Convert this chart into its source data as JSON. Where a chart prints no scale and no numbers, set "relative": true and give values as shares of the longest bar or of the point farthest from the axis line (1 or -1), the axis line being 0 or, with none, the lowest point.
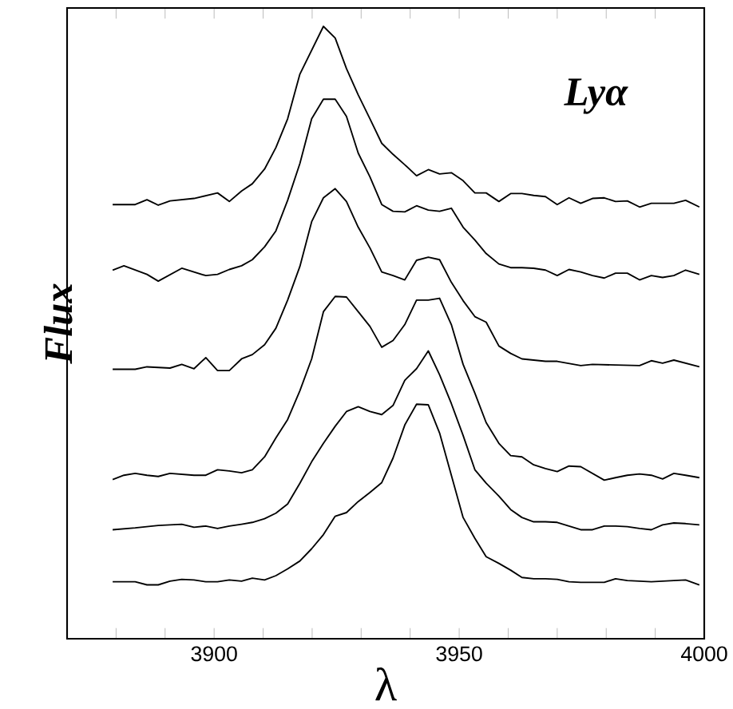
{
  "chart_data": {
    "type": "line",
    "xlabel": "λ",
    "ylabel": "Flux",
    "annotations": [
      "Lyα"
    ],
    "relative": true,
    "line_style": "solid",
    "grid": false,
    "xlim": [
      3870,
      4000
    ],
    "xticks": [
      {
        "value": 3880,
        "label": null
      },
      {
        "value": 3890,
        "label": null
      },
      3900,
      {
        "value": 3910,
        "label": null
      },
      {
        "value": 3920,
        "label": null
      },
      {
        "value": 3930,
        "label": null
      },
      {
        "value": 3940,
        "label": null
      },
      3950,
      {
        "value": 3960,
        "label": null
      },
      {
        "value": 3970,
        "label": null
      },
      {
        "value": 3980,
        "label": null
      },
      {
        "value": 3990,
        "label": null
      },
      4000
    ],
    "series": [
      {
        "color": "#000000",
        "x": [
          3879.3,
          3883.9,
          3886.3,
          3888.6,
          3891.0,
          3895.9,
          3900.7,
          3903.1,
          3905.6,
          3907.8,
          3910.3,
          3912.6,
          3915.0,
          3917.5,
          3919.9,
          3922.3,
          3924.7,
          3927.0,
          3929.4,
          3931.8,
          3934.2,
          3936.5,
          3938.9,
          3941.3,
          3943.7,
          3946.0,
          3948.4,
          3950.8,
          3953.2,
          3955.5,
          3958.1,
          3960.5,
          3962.8,
          3965.2,
          3967.6,
          3970.0,
          3972.4,
          3974.8,
          3977.2,
          3979.6,
          3981.9,
          3984.3,
          3986.8,
          3989.2,
          3993.8,
          3996.2,
          3999.0
        ],
        "values": [
          0.709,
          0.709,
          0.717,
          0.708,
          0.715,
          0.719,
          0.728,
          0.714,
          0.731,
          0.743,
          0.767,
          0.802,
          0.849,
          0.922,
          0.961,
          1.0,
          0.981,
          0.931,
          0.888,
          0.849,
          0.809,
          0.791,
          0.774,
          0.756,
          0.766,
          0.759,
          0.761,
          0.748,
          0.728,
          0.728,
          0.714,
          0.727,
          0.727,
          0.724,
          0.722,
          0.709,
          0.72,
          0.711,
          0.719,
          0.72,
          0.714,
          0.715,
          0.705,
          0.711,
          0.711,
          0.716,
          0.705
        ]
      },
      {
        "color": "#000000",
        "x": [
          3879.3,
          3881.6,
          3886.3,
          3888.6,
          3893.4,
          3898.3,
          3900.7,
          3903.1,
          3905.6,
          3907.8,
          3910.3,
          3912.6,
          3915.0,
          3917.5,
          3919.9,
          3922.3,
          3924.7,
          3927.0,
          3929.4,
          3931.8,
          3934.2,
          3936.5,
          3938.9,
          3941.3,
          3943.7,
          3946.0,
          3948.4,
          3950.8,
          3953.2,
          3955.5,
          3958.1,
          3960.5,
          3962.8,
          3965.2,
          3967.6,
          3970.0,
          3972.4,
          3974.8,
          3977.2,
          3979.6,
          3981.9,
          3984.3,
          3986.8,
          3989.2,
          3991.5,
          3993.8,
          3996.2,
          3999.0
        ],
        "values": [
          0.602,
          0.609,
          0.595,
          0.584,
          0.605,
          0.593,
          0.595,
          0.603,
          0.609,
          0.619,
          0.64,
          0.666,
          0.716,
          0.776,
          0.849,
          0.881,
          0.881,
          0.853,
          0.793,
          0.754,
          0.709,
          0.698,
          0.697,
          0.707,
          0.7,
          0.698,
          0.703,
          0.672,
          0.651,
          0.629,
          0.612,
          0.606,
          0.606,
          0.605,
          0.602,
          0.593,
          0.603,
          0.599,
          0.593,
          0.589,
          0.597,
          0.597,
          0.586,
          0.593,
          0.59,
          0.593,
          0.602,
          0.595
        ]
      },
      {
        "color": "#000000",
        "x": [
          3879.3,
          3883.9,
          3886.3,
          3891.0,
          3893.4,
          3895.9,
          3898.3,
          3900.7,
          3903.1,
          3905.6,
          3907.8,
          3910.3,
          3912.6,
          3915.0,
          3917.5,
          3919.9,
          3922.3,
          3924.7,
          3927.0,
          3929.4,
          3931.8,
          3934.2,
          3936.5,
          3938.9,
          3941.3,
          3943.7,
          3946.0,
          3948.4,
          3950.8,
          3953.2,
          3955.5,
          3958.1,
          3960.5,
          3962.8,
          3967.6,
          3970.0,
          3974.8,
          3977.2,
          3981.9,
          3986.8,
          3989.2,
          3991.5,
          3993.8,
          3999.0
        ],
        "values": [
          0.44,
          0.44,
          0.444,
          0.442,
          0.448,
          0.441,
          0.459,
          0.438,
          0.438,
          0.457,
          0.464,
          0.48,
          0.507,
          0.553,
          0.608,
          0.681,
          0.72,
          0.735,
          0.714,
          0.672,
          0.638,
          0.599,
          0.593,
          0.586,
          0.618,
          0.623,
          0.619,
          0.582,
          0.552,
          0.526,
          0.517,
          0.478,
          0.466,
          0.457,
          0.453,
          0.453,
          0.446,
          0.448,
          0.447,
          0.446,
          0.454,
          0.45,
          0.455,
          0.444
        ]
      },
      {
        "color": "#000000",
        "x": [
          3879.3,
          3881.6,
          3883.9,
          3886.3,
          3888.6,
          3891.0,
          3895.9,
          3898.3,
          3900.7,
          3903.1,
          3905.6,
          3907.8,
          3910.3,
          3912.6,
          3915.0,
          3917.5,
          3919.9,
          3922.3,
          3924.7,
          3927.0,
          3929.4,
          3931.8,
          3934.2,
          3936.5,
          3938.9,
          3941.3,
          3943.7,
          3946.0,
          3948.4,
          3950.8,
          3953.2,
          3955.5,
          3958.1,
          3960.5,
          3962.8,
          3965.2,
          3967.6,
          3970.0,
          3972.4,
          3974.8,
          3977.2,
          3979.6,
          3981.9,
          3984.3,
          3986.8,
          3989.2,
          3991.5,
          3993.8,
          3996.2,
          3999.0
        ],
        "values": [
          0.26,
          0.267,
          0.27,
          0.267,
          0.265,
          0.27,
          0.267,
          0.267,
          0.276,
          0.274,
          0.271,
          0.276,
          0.297,
          0.328,
          0.358,
          0.405,
          0.457,
          0.534,
          0.559,
          0.558,
          0.534,
          0.51,
          0.476,
          0.487,
          0.513,
          0.553,
          0.553,
          0.556,
          0.513,
          0.448,
          0.401,
          0.353,
          0.319,
          0.299,
          0.297,
          0.284,
          0.278,
          0.273,
          0.282,
          0.281,
          0.27,
          0.259,
          0.263,
          0.267,
          0.269,
          0.267,
          0.261,
          0.27,
          0.267,
          0.263
        ]
      },
      {
        "color": "#000000",
        "x": [
          3879.3,
          3883.9,
          3888.6,
          3893.4,
          3895.9,
          3898.3,
          3900.7,
          3903.1,
          3905.6,
          3907.8,
          3910.3,
          3912.6,
          3915.0,
          3917.5,
          3919.9,
          3922.3,
          3924.7,
          3927.0,
          3929.4,
          3931.8,
          3934.2,
          3936.5,
          3938.9,
          3941.3,
          3943.7,
          3946.0,
          3948.4,
          3950.8,
          3953.2,
          3955.5,
          3958.1,
          3960.5,
          3962.8,
          3965.2,
          3967.6,
          3970.0,
          3972.4,
          3974.8,
          3977.2,
          3979.6,
          3981.9,
          3984.3,
          3986.8,
          3989.2,
          3991.5,
          3993.8,
          3996.2,
          3999.0
        ],
        "values": [
          0.178,
          0.181,
          0.185,
          0.187,
          0.182,
          0.184,
          0.18,
          0.184,
          0.187,
          0.19,
          0.196,
          0.205,
          0.22,
          0.254,
          0.289,
          0.319,
          0.347,
          0.371,
          0.379,
          0.371,
          0.366,
          0.381,
          0.422,
          0.441,
          0.47,
          0.431,
          0.384,
          0.332,
          0.276,
          0.254,
          0.233,
          0.211,
          0.198,
          0.191,
          0.191,
          0.19,
          0.184,
          0.178,
          0.178,
          0.184,
          0.184,
          0.183,
          0.18,
          0.178,
          0.186,
          0.189,
          0.188,
          0.186
        ]
      },
      {
        "color": "#000000",
        "x": [
          3879.3,
          3883.9,
          3886.3,
          3888.6,
          3891.0,
          3893.4,
          3895.9,
          3898.3,
          3900.7,
          3903.1,
          3905.6,
          3907.8,
          3910.3,
          3912.6,
          3915.0,
          3917.5,
          3919.9,
          3922.3,
          3924.7,
          3927.0,
          3929.4,
          3931.8,
          3934.2,
          3936.5,
          3938.9,
          3941.3,
          3943.7,
          3946.0,
          3948.4,
          3950.8,
          3953.2,
          3955.5,
          3958.1,
          3960.5,
          3962.8,
          3965.2,
          3967.6,
          3970.0,
          3972.4,
          3974.8,
          3977.2,
          3979.6,
          3981.9,
          3984.3,
          3986.8,
          3989.2,
          3991.5,
          3993.8,
          3996.2,
          3999.0
        ],
        "values": [
          0.093,
          0.093,
          0.088,
          0.088,
          0.094,
          0.097,
          0.096,
          0.093,
          0.093,
          0.096,
          0.094,
          0.099,
          0.096,
          0.103,
          0.114,
          0.127,
          0.147,
          0.17,
          0.2,
          0.206,
          0.224,
          0.239,
          0.255,
          0.295,
          0.349,
          0.383,
          0.382,
          0.336,
          0.267,
          0.198,
          0.164,
          0.134,
          0.123,
          0.112,
          0.1,
          0.098,
          0.098,
          0.097,
          0.093,
          0.092,
          0.092,
          0.092,
          0.098,
          0.095,
          0.094,
          0.093,
          0.094,
          0.095,
          0.096,
          0.088
        ]
      }
    ]
  }
}
